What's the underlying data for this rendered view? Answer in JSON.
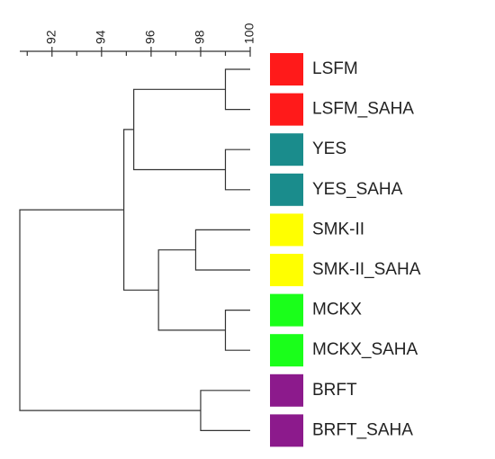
{
  "chart_data": {
    "type": "dendrogram",
    "xlim": [
      90.7,
      100
    ],
    "xticks": [
      92,
      94,
      96,
      98,
      100
    ],
    "minor_xticks": [
      91,
      93,
      95,
      97,
      99
    ],
    "leaves": [
      {
        "name": "LSFM",
        "color": "#ff1a1a"
      },
      {
        "name": "LSFM_SAHA",
        "color": "#ff1a1a"
      },
      {
        "name": "YES",
        "color": "#1a8c8c"
      },
      {
        "name": "YES_SAHA",
        "color": "#1a8c8c"
      },
      {
        "name": "SMK-II",
        "color": "#ffff00"
      },
      {
        "name": "SMK-II_SAHA",
        "color": "#ffff00"
      },
      {
        "name": "MCKX",
        "color": "#1aff1a"
      },
      {
        "name": "MCKX_SAHA",
        "color": "#1aff1a"
      },
      {
        "name": "BRFT",
        "color": "#8c1a8c"
      },
      {
        "name": "BRFT_SAHA",
        "color": "#8c1a8c"
      }
    ],
    "merges": [
      {
        "children": [
          0,
          1
        ],
        "height": 99.0
      },
      {
        "children": [
          2,
          3
        ],
        "height": 99.0
      },
      {
        "children": [
          10,
          11
        ],
        "height": 95.3
      },
      {
        "children": [
          4,
          5
        ],
        "height": 97.8
      },
      {
        "children": [
          6,
          7
        ],
        "height": 99.0
      },
      {
        "children": [
          13,
          14
        ],
        "height": 96.3
      },
      {
        "children": [
          12,
          15
        ],
        "height": 94.9
      },
      {
        "children": [
          8,
          9
        ],
        "height": 98.0
      },
      {
        "children": [
          16,
          17
        ],
        "height": 90.7
      }
    ]
  }
}
